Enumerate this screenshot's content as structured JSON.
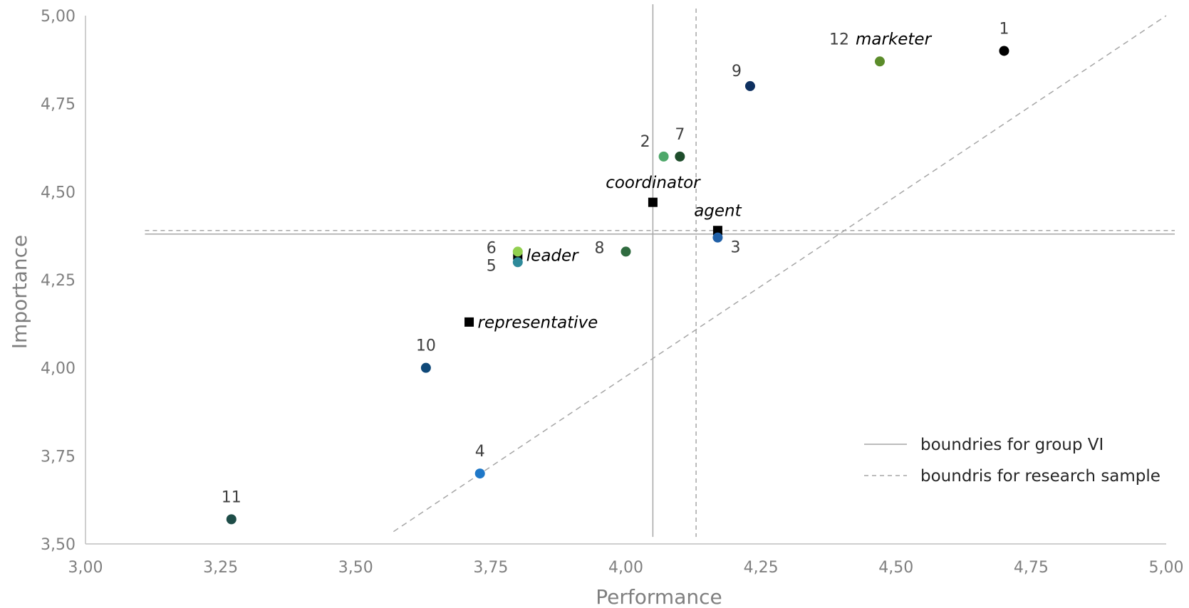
{
  "chart_data": {
    "type": "scatter",
    "xlabel": "Performance",
    "ylabel": "Importance",
    "xlim": [
      3.0,
      5.0
    ],
    "ylim": [
      3.5,
      5.0
    ],
    "x_ticks": [
      "3,00",
      "3,25",
      "3,50",
      "3,75",
      "4,00",
      "4,25",
      "4,50",
      "4,75",
      "5,00"
    ],
    "y_ticks": [
      "3,50",
      "3,75",
      "4,00",
      "4,25",
      "4,50",
      "4,75",
      "5,00"
    ],
    "grid": false,
    "legend_position": "bottom-right",
    "legend": [
      {
        "label": "boundries for group VI",
        "style": "solid",
        "color": "#a6a6a6"
      },
      {
        "label": "boundris for research sample",
        "style": "dashed",
        "color": "#a6a6a6"
      }
    ],
    "boundaries_group": {
      "x": 4.05,
      "y": 4.38
    },
    "boundaries_sample": {
      "x": 4.13,
      "y": 4.39
    },
    "diagonal": {
      "x0": 3.57,
      "y0": 3.535,
      "x1": 5.0,
      "y1": 5.0
    },
    "points": [
      {
        "label": "1",
        "x": 4.7,
        "y": 4.9,
        "color": "#000000",
        "label_pos": "above"
      },
      {
        "label": "2",
        "x": 4.07,
        "y": 4.6,
        "color": "#4ea86a",
        "label_pos": "above-left"
      },
      {
        "label": "3",
        "x": 4.17,
        "y": 4.37,
        "color": "#1f5fa6",
        "label_pos": "below-right"
      },
      {
        "label": "4",
        "x": 3.73,
        "y": 3.7,
        "color": "#1f78c8",
        "label_pos": "above"
      },
      {
        "label": "5",
        "x": 3.8,
        "y": 4.3,
        "color": "#2e8a9a",
        "label_pos": "below-left"
      },
      {
        "label": "6",
        "x": 3.8,
        "y": 4.33,
        "color": "#92d050",
        "label_pos": "left"
      },
      {
        "label": "7",
        "x": 4.1,
        "y": 4.6,
        "color": "#1e4d2b",
        "label_pos": "above"
      },
      {
        "label": "8",
        "x": 4.0,
        "y": 4.33,
        "color": "#2f6b3f",
        "label_pos": "left"
      },
      {
        "label": "9",
        "x": 4.23,
        "y": 4.8,
        "color": "#0e3060",
        "label_pos": "above-left"
      },
      {
        "label": "10",
        "x": 3.63,
        "y": 4.0,
        "color": "#0f4878",
        "label_pos": "above"
      },
      {
        "label": "11",
        "x": 3.27,
        "y": 3.57,
        "color": "#1e4d48",
        "label_pos": "above"
      },
      {
        "label": "12",
        "x": 4.47,
        "y": 4.87,
        "color": "#5b8c2a",
        "label_pos": "above-left"
      }
    ],
    "roles": [
      {
        "label": "coordinator",
        "x": 4.05,
        "y": 4.47,
        "label_pos": "above"
      },
      {
        "label": "agent",
        "x": 4.17,
        "y": 4.39,
        "label_pos": "above"
      },
      {
        "label": "leader",
        "x": 3.8,
        "y": 4.32,
        "label_pos": "right"
      },
      {
        "label": "representative",
        "x": 3.71,
        "y": 4.13,
        "label_pos": "right"
      },
      {
        "label": "marketer",
        "x": 4.47,
        "y": 4.87,
        "label_pos": "above-right"
      }
    ]
  }
}
